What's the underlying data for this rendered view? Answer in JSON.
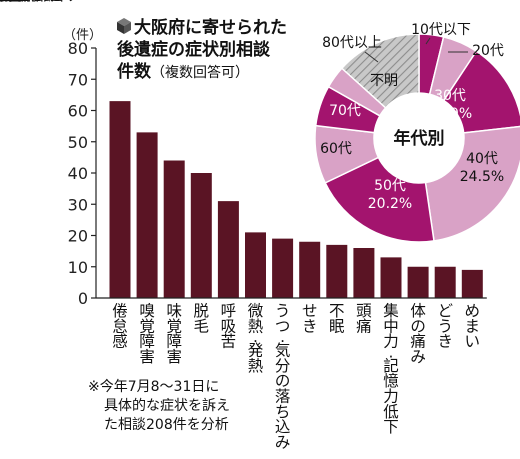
{
  "title": {
    "line1": "大阪府に寄せられた",
    "line2": "後遺症の症状別相談",
    "line3": "件数",
    "line3_sub": "（複数回答可）"
  },
  "note": {
    "line1": "※今年7月8〜31日に",
    "line2": "具体的な症状を訴え",
    "line3": "た相談208件を分析"
  },
  "colors": {
    "bar": "#5a1424",
    "pie_dark": "#a3146e",
    "pie_light": "#d9a2c6",
    "pie_gray": "#bdbdbd"
  },
  "chart_data": [
    {
      "type": "bar",
      "title": "大阪府に寄せられた後遺症の症状別相談件数（複数回答可）",
      "ylabel": "（件）",
      "ylim": [
        0,
        80
      ],
      "yticks": [
        0,
        10,
        20,
        30,
        40,
        50,
        60,
        70,
        80
      ],
      "categories": [
        "倦怠感",
        "嗅覚障害",
        "味覚障害",
        "脱毛",
        "呼吸苦",
        "微熱・発熱",
        "うつ・気分の落ち込み",
        "せき",
        "不眠",
        "頭痛",
        "集中力・記憶力低下",
        "体の痛み",
        "どうき",
        "めまい"
      ],
      "values": [
        63,
        53,
        44,
        40,
        31,
        21,
        19,
        18,
        17,
        16,
        13,
        10,
        10,
        9
      ]
    },
    {
      "type": "pie",
      "title": "年代別",
      "slices": [
        {
          "label": "10代以下",
          "value": null,
          "color": "#a3146e"
        },
        {
          "label": "20代",
          "value": null,
          "color": "#d9a2c6"
        },
        {
          "label": "30代",
          "value": 13.9,
          "value_text": "13.9%",
          "color": "#a3146e"
        },
        {
          "label": "40代",
          "value": 24.5,
          "value_text": "24.5%",
          "color": "#d9a2c6"
        },
        {
          "label": "50代",
          "value": 20.2,
          "value_text": "20.2%",
          "color": "#a3146e"
        },
        {
          "label": "60代",
          "value": null,
          "color": "#d9a2c6"
        },
        {
          "label": "70代",
          "value": null,
          "color": "#a3146e"
        },
        {
          "label": "80代以上",
          "value": null,
          "color": "#d9a2c6"
        },
        {
          "label": "不明",
          "value": null,
          "color": "#bdbdbd"
        }
      ]
    }
  ]
}
